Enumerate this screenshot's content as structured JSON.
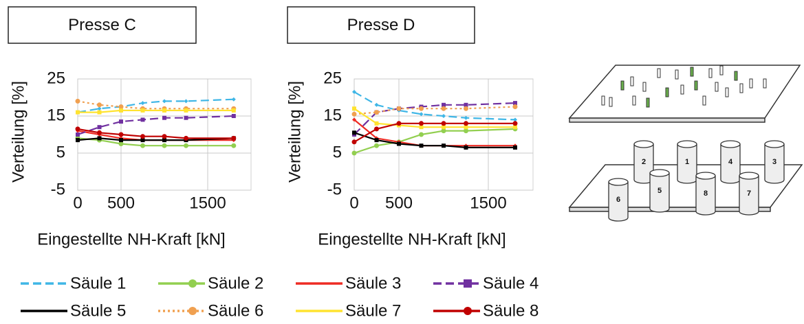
{
  "chart_data": [
    {
      "type": "line",
      "title": "Presse C",
      "x_label": "Eingestellte NH-Kraft [kN]",
      "y_label": "Verteilung [%]",
      "x": [
        0,
        250,
        500,
        750,
        1000,
        1250,
        1800
      ],
      "xlim": [
        0,
        2000
      ],
      "xticks": [
        0,
        500,
        1500
      ],
      "ylim": [
        -5,
        25
      ],
      "yticks": [
        -5,
        5,
        15,
        25
      ],
      "grid": true,
      "series": [
        {
          "name": "Säule 1",
          "color": "#3fb6e6",
          "dash": "dashed",
          "marker": "diamond",
          "values": [
            16,
            17,
            17.5,
            18.5,
            19,
            19,
            19.5
          ]
        },
        {
          "name": "Säule 2",
          "color": "#92cf50",
          "dash": "solid",
          "marker": "circle",
          "values": [
            9,
            8.5,
            7.5,
            7,
            7,
            7,
            7
          ]
        },
        {
          "name": "Säule 3",
          "color": "#ee2b24",
          "dash": "solid",
          "marker": "diamond",
          "values": [
            11,
            10,
            9,
            8.5,
            8.5,
            8.5,
            8.5
          ]
        },
        {
          "name": "Säule 4",
          "color": "#7030a0",
          "dash": "dashed",
          "marker": "square",
          "values": [
            10,
            12,
            13.5,
            14,
            14.5,
            14.5,
            15
          ]
        },
        {
          "name": "Säule 5",
          "color": "#000000",
          "dash": "solid",
          "marker": "square",
          "values": [
            8.5,
            9,
            8.5,
            8.5,
            8.5,
            8.5,
            9
          ]
        },
        {
          "name": "Säule 6",
          "color": "#f0a050",
          "dash": "dotted",
          "marker": "circle",
          "values": [
            19,
            18,
            17.5,
            17,
            17,
            17,
            17
          ]
        },
        {
          "name": "Säule 7",
          "color": "#ffe330",
          "dash": "solid",
          "marker": "square",
          "values": [
            16,
            16,
            16.5,
            16.5,
            16.5,
            16.5,
            16.5
          ]
        },
        {
          "name": "Säule 8",
          "color": "#c00000",
          "dash": "solid",
          "marker": "circle",
          "values": [
            11.5,
            10.5,
            10,
            9.5,
            9.5,
            9,
            9
          ]
        }
      ]
    },
    {
      "type": "line",
      "title": "Presse D",
      "x_label": "Eingestellte NH-Kraft [kN]",
      "y_label": "Verteilung [%]",
      "x": [
        0,
        250,
        500,
        750,
        1000,
        1250,
        1800
      ],
      "xlim": [
        0,
        2000
      ],
      "xticks": [
        0,
        500,
        1500
      ],
      "ylim": [
        -5,
        25
      ],
      "yticks": [
        -5,
        5,
        15,
        25
      ],
      "grid": true,
      "series": [
        {
          "color": "#3fb6e6",
          "dash": "dashed",
          "marker": "diamond",
          "values": [
            21.5,
            18,
            16.5,
            15.5,
            15,
            14.5,
            14
          ]
        },
        {
          "color": "#92cf50",
          "dash": "solid",
          "marker": "circle",
          "values": [
            5,
            7,
            8,
            10,
            11,
            11,
            11.5
          ]
        },
        {
          "color": "#ee2b24",
          "dash": "solid",
          "marker": "diamond",
          "values": [
            14,
            9,
            8,
            7,
            7,
            7,
            7
          ]
        },
        {
          "color": "#7030a0",
          "dash": "dashed",
          "marker": "square",
          "values": [
            10,
            16,
            17,
            17.5,
            18,
            18,
            18.5
          ]
        },
        {
          "color": "#000000",
          "dash": "solid",
          "marker": "square",
          "values": [
            10.5,
            8.5,
            7.5,
            7,
            7,
            6.5,
            6.5
          ]
        },
        {
          "color": "#f0a050",
          "dash": "dotted",
          "marker": "circle",
          "values": [
            15.5,
            16,
            17,
            17,
            17,
            17,
            17.5
          ]
        },
        {
          "color": "#ffe330",
          "dash": "solid",
          "marker": "square",
          "values": [
            17,
            13,
            12.5,
            12,
            12,
            12,
            12
          ]
        },
        {
          "color": "#c00000",
          "dash": "solid",
          "marker": "circle",
          "values": [
            8,
            11.5,
            13,
            13,
            13,
            13,
            13
          ]
        }
      ]
    }
  ],
  "diagram": {
    "column_labels": [
      "6",
      "2",
      "5",
      "1",
      "8",
      "4",
      "7",
      "3"
    ]
  }
}
